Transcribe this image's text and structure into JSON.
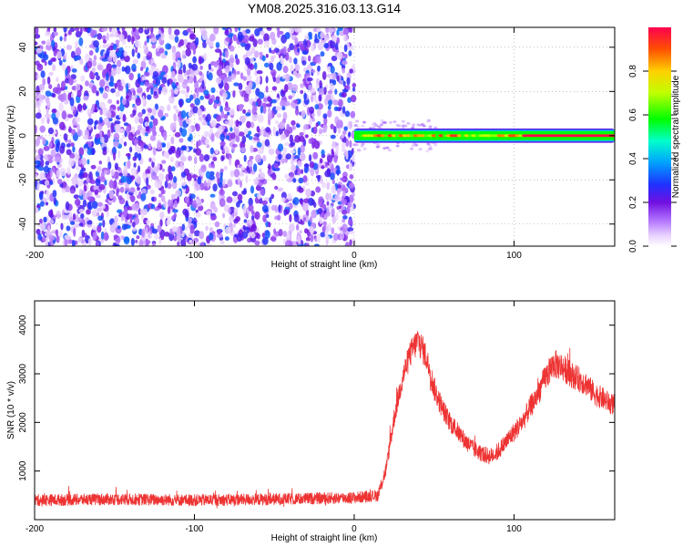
{
  "figure": {
    "title": "YM08.2025.316.03.13.G14"
  },
  "colors": {
    "snr_line": "#ee3333",
    "axis": "#000000"
  },
  "chart_data": [
    {
      "type": "heatmap",
      "title": "YM08.2025.316.03.13.G14",
      "xlabel": "Height of straight line (km)",
      "ylabel": "Frequency (Hz)",
      "xlim": [
        -200,
        163
      ],
      "ylim": [
        -50,
        49
      ],
      "x_ticks": [
        -200,
        -100,
        0,
        100
      ],
      "y_ticks": [
        -40,
        -20,
        0,
        20,
        40
      ],
      "grid": true,
      "colorbar": {
        "label": "Normalized spectral amplitude",
        "range": [
          0.0,
          1.0
        ],
        "ticks": [
          0.0,
          0.2,
          0.4,
          0.6,
          0.8
        ],
        "tick_labels": [
          "0.0",
          "0.2",
          "0.4",
          "0.6",
          "0.8"
        ]
      },
      "regions": [
        {
          "name": "noise",
          "x": [
            -200,
            0
          ],
          "y": [
            -50,
            49
          ],
          "amplitude_range": [
            0.0,
            0.15
          ]
        },
        {
          "name": "signal band",
          "x": [
            0,
            163
          ],
          "y": [
            -2,
            2
          ],
          "amplitude_range": [
            0.3,
            1.0
          ]
        }
      ]
    },
    {
      "type": "line",
      "xlabel": "Height of straight line (km)",
      "ylabel": "SNR (10 * v/v)",
      "xlim": [
        -200,
        163
      ],
      "ylim": [
        0,
        4500
      ],
      "x_ticks": [
        -200,
        -100,
        0,
        100
      ],
      "y_ticks": [
        1000,
        2000,
        3000,
        4000
      ],
      "grid": false,
      "series": [
        {
          "x": [
            -200,
            -150,
            -100,
            -50,
            0,
            15,
            20,
            25,
            30,
            35,
            40,
            45,
            50,
            55,
            60,
            65,
            70,
            75,
            80,
            85,
            90,
            95,
            100,
            105,
            110,
            115,
            120,
            125,
            130,
            135,
            140,
            145,
            150,
            155,
            160,
            163
          ],
          "y": [
            400,
            420,
            400,
            420,
            450,
            500,
            1050,
            2100,
            2900,
            3400,
            3700,
            3350,
            2700,
            2300,
            2000,
            1800,
            1600,
            1450,
            1350,
            1300,
            1400,
            1600,
            1800,
            2000,
            2300,
            2600,
            2950,
            3200,
            3150,
            3000,
            2900,
            2800,
            2600,
            2500,
            2400,
            2350
          ],
          "noise_amplitude": [
            120,
            120,
            120,
            120,
            120,
            120,
            150,
            200,
            250,
            280,
            300,
            280,
            250,
            220,
            200,
            190,
            180,
            170,
            170,
            170,
            180,
            190,
            200,
            210,
            230,
            250,
            280,
            300,
            290,
            270,
            260,
            250,
            240,
            230,
            220,
            220
          ]
        }
      ]
    }
  ]
}
